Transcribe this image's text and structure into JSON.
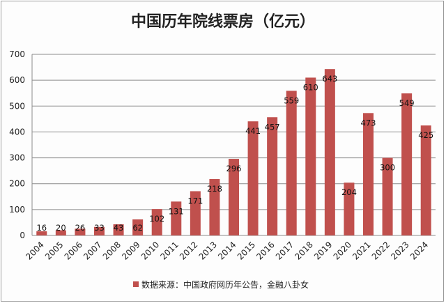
{
  "chart_data": {
    "type": "bar",
    "title": "中国历年院线票房（亿元）",
    "xlabel": "",
    "ylabel": "",
    "categories": [
      "2004",
      "2005",
      "2006",
      "2007",
      "2008",
      "2009",
      "2010",
      "2011",
      "2012",
      "2013",
      "2014",
      "2015",
      "2016",
      "2017",
      "2018",
      "2019",
      "2020",
      "2021",
      "2022",
      "2023",
      "2024"
    ],
    "values": [
      16,
      20,
      26,
      33,
      43,
      62,
      102,
      131,
      171,
      218,
      296,
      441,
      457,
      559,
      610,
      643,
      204,
      473,
      300,
      549,
      425
    ],
    "ylim": [
      0,
      700
    ],
    "yticks": [
      0,
      100,
      200,
      300,
      400,
      500,
      600,
      700
    ],
    "grid": true,
    "legend": {
      "label": "数据来源：中国政府网历年公告，金融八卦女",
      "placement": "bottom"
    },
    "colors": {
      "bar": "#c0504d",
      "grid": "#8c8c8c"
    }
  }
}
